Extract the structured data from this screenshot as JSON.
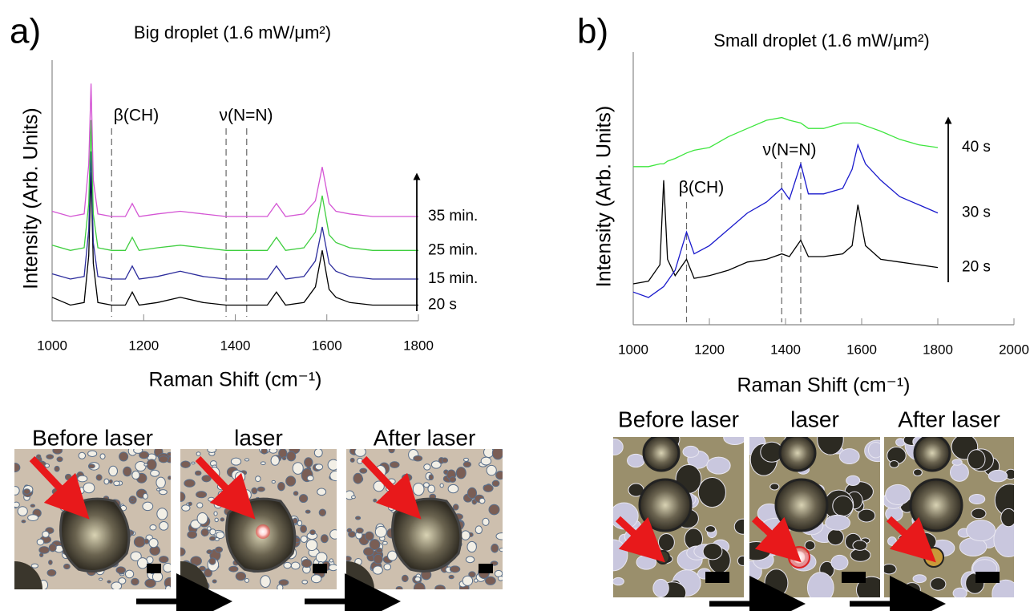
{
  "chart_data": [
    {
      "type": "line",
      "panel": "a)",
      "title": "Big droplet (1.6 mW/μm²)",
      "xlabel": "Raman Shift (cm⁻¹)",
      "ylabel": "Intensity (Arb. Units)",
      "xlim": [
        1000,
        1800
      ],
      "xticks": [
        1000,
        1200,
        1400,
        1600,
        1800
      ],
      "ylim": [
        0,
        10
      ],
      "x": [
        1000,
        1040,
        1070,
        1080,
        1085,
        1090,
        1100,
        1130,
        1160,
        1175,
        1190,
        1230,
        1280,
        1330,
        1380,
        1430,
        1470,
        1490,
        1510,
        1550,
        1575,
        1590,
        1605,
        1620,
        1650,
        1700,
        1750,
        1800
      ],
      "series": [
        {
          "name": "20 s",
          "color": "#000000",
          "values": [
            0.9,
            0.6,
            0.7,
            2.5,
            5.7,
            2.2,
            0.7,
            0.6,
            0.6,
            1.1,
            0.6,
            0.7,
            0.9,
            0.7,
            0.6,
            0.6,
            0.6,
            1.1,
            0.6,
            0.7,
            1.3,
            2.7,
            1.2,
            0.9,
            0.7,
            0.6,
            0.6,
            0.6
          ]
        },
        {
          "name": "15 min.",
          "color": "#2c2c9c",
          "values": [
            1.8,
            1.6,
            1.7,
            3.5,
            6.5,
            3.0,
            1.7,
            1.6,
            1.6,
            2.1,
            1.6,
            1.7,
            1.9,
            1.7,
            1.6,
            1.6,
            1.6,
            2.1,
            1.6,
            1.7,
            2.3,
            3.6,
            2.2,
            1.9,
            1.7,
            1.6,
            1.6,
            1.6
          ]
        },
        {
          "name": "25 min.",
          "color": "#3fce3f",
          "values": [
            2.9,
            2.7,
            2.8,
            4.5,
            7.7,
            4.1,
            2.8,
            2.7,
            2.7,
            3.2,
            2.7,
            2.8,
            2.9,
            2.8,
            2.7,
            2.7,
            2.7,
            3.2,
            2.7,
            2.8,
            3.4,
            4.8,
            3.3,
            3.0,
            2.8,
            2.7,
            2.7,
            2.7
          ]
        },
        {
          "name": "35 min.",
          "color": "#d455d4",
          "values": [
            4.2,
            4.0,
            4.1,
            6.0,
            9.1,
            5.4,
            4.1,
            4.0,
            4.0,
            4.5,
            4.0,
            4.1,
            4.2,
            4.1,
            4.0,
            4.0,
            4.0,
            4.5,
            4.0,
            4.1,
            4.6,
            5.9,
            4.5,
            4.2,
            4.1,
            4.0,
            4.0,
            4.0
          ]
        }
      ],
      "annotations": [
        {
          "text": "β(CH)",
          "x": [
            1130
          ]
        },
        {
          "text": "ν(N=N)",
          "x": [
            1380,
            1425
          ]
        }
      ]
    },
    {
      "type": "line",
      "panel": "b)",
      "title": "Small droplet (1.6 mW/μm²)",
      "xlabel": "Raman Shift (cm⁻¹)",
      "ylabel": "Intensity (Arb. Units)",
      "xlim": [
        1000,
        2000
      ],
      "xticks": [
        1000,
        1200,
        1400,
        1600,
        1800,
        2000
      ],
      "ylim": [
        0,
        10
      ],
      "x": [
        1000,
        1040,
        1070,
        1080,
        1090,
        1110,
        1140,
        1160,
        1200,
        1250,
        1300,
        1350,
        1390,
        1410,
        1440,
        1460,
        1500,
        1550,
        1575,
        1590,
        1610,
        1650,
        1700,
        1750,
        1800
      ],
      "series": [
        {
          "name": "20 s",
          "color": "#000000",
          "values": [
            1.5,
            1.6,
            2.2,
            5.3,
            2.4,
            1.8,
            2.4,
            1.7,
            1.8,
            2.0,
            2.3,
            2.4,
            2.6,
            2.5,
            3.1,
            2.5,
            2.5,
            2.6,
            2.9,
            4.4,
            2.9,
            2.4,
            2.3,
            2.2,
            2.1
          ]
        },
        {
          "name": "30 s",
          "color": "#1a1acc",
          "values": [
            1.2,
            1.0,
            1.3,
            1.4,
            1.6,
            2.0,
            3.4,
            2.6,
            2.9,
            3.5,
            4.1,
            4.5,
            5.0,
            4.6,
            5.9,
            4.8,
            4.8,
            5.0,
            5.7,
            6.6,
            5.9,
            5.3,
            4.7,
            4.4,
            4.1
          ]
        },
        {
          "name": "40 s",
          "color": "#3ee63e",
          "values": [
            5.8,
            5.8,
            5.9,
            5.9,
            6.0,
            6.1,
            6.3,
            6.4,
            6.5,
            6.9,
            7.2,
            7.5,
            7.6,
            7.5,
            7.4,
            7.2,
            7.2,
            7.4,
            7.4,
            7.4,
            7.3,
            7.1,
            6.8,
            6.6,
            6.5
          ]
        }
      ],
      "annotations": [
        {
          "text": "β(CH)",
          "x": [
            1140
          ]
        },
        {
          "text": "ν(N=N)",
          "x": [
            1390,
            1440
          ]
        }
      ]
    }
  ],
  "images": [
    {
      "labels": [
        "Before laser",
        "laser",
        "After laser"
      ]
    },
    {
      "labels": [
        "Before laser",
        "laser",
        "After laser"
      ]
    }
  ]
}
